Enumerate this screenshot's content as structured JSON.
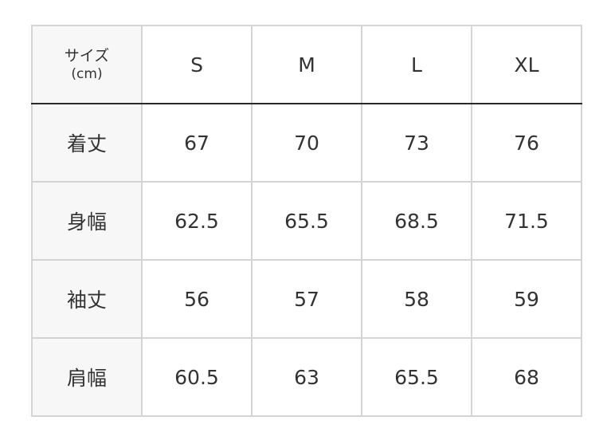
{
  "table": {
    "corner_label": "サイズ",
    "corner_unit": "(cm)",
    "columns": [
      "S",
      "M",
      "L",
      "XL"
    ],
    "rows": [
      {
        "label": "着丈",
        "values": [
          "67",
          "70",
          "73",
          "76"
        ]
      },
      {
        "label": "身幅",
        "values": [
          "62.5",
          "65.5",
          "68.5",
          "71.5"
        ]
      },
      {
        "label": "袖丈",
        "values": [
          "56",
          "57",
          "58",
          "59"
        ]
      },
      {
        "label": "肩幅",
        "values": [
          "60.5",
          "63",
          "65.5",
          "68"
        ]
      }
    ]
  }
}
